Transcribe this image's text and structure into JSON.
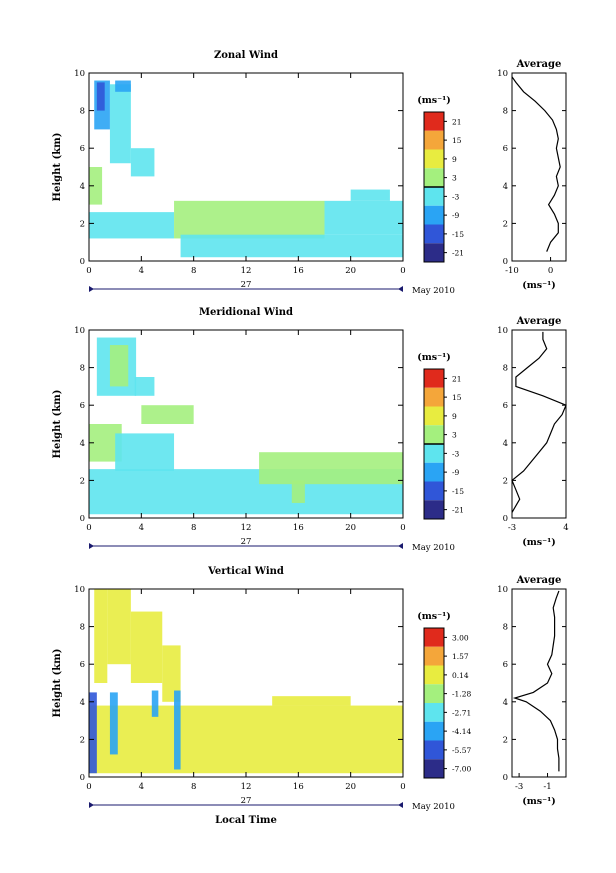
{
  "chart_data": [
    {
      "type": "heatmap",
      "title": "Zonal Wind",
      "ylabel": "Height (km)",
      "xlim": [
        0,
        24
      ],
      "ylim": [
        0,
        10
      ],
      "xticks": [
        "0",
        "4",
        "8",
        "12",
        "16",
        "20",
        "0"
      ],
      "yticks": [
        "0",
        "2",
        "4",
        "6",
        "8",
        "10"
      ],
      "date_day": "27",
      "date_label": "May 2010",
      "colorbar": {
        "unit": "(ms⁻¹)",
        "ticks": [
          "21",
          "15",
          "9",
          "3",
          "-3",
          "-9",
          "-15",
          "-21"
        ],
        "range": [
          -24,
          24
        ],
        "contour": 0,
        "colors": [
          "#2c2c88",
          "#3056d8",
          "#2aa4f4",
          "#5ee4ee",
          "#a4f07e",
          "#e8ec40",
          "#f4a63a",
          "#e02a1c"
        ]
      },
      "regions": [
        {
          "x": [
            0.4,
            1.6
          ],
          "y": [
            7.0,
            9.6
          ],
          "v": -8
        },
        {
          "x": [
            0.6,
            1.2
          ],
          "y": [
            8.0,
            9.5
          ],
          "v": -16
        },
        {
          "x": [
            1.6,
            3.2
          ],
          "y": [
            5.2,
            9.4
          ],
          "v": -4
        },
        {
          "x": [
            2.0,
            3.2
          ],
          "y": [
            9.0,
            9.6
          ],
          "v": -12
        },
        {
          "x": [
            3.2,
            5.0
          ],
          "y": [
            4.5,
            6.0
          ],
          "v": -3
        },
        {
          "x": [
            0.0,
            1.0
          ],
          "y": [
            3.0,
            5.0
          ],
          "v": 4
        },
        {
          "x": [
            0.0,
            6.5
          ],
          "y": [
            1.2,
            2.6
          ],
          "v": -2
        },
        {
          "x": [
            6.5,
            18.0
          ],
          "y": [
            1.2,
            3.2
          ],
          "v": 2
        },
        {
          "x": [
            7.0,
            24.0
          ],
          "y": [
            0.2,
            1.4
          ],
          "v": -6
        },
        {
          "x": [
            18.0,
            24.0
          ],
          "y": [
            1.4,
            3.2
          ],
          "v": -1
        },
        {
          "x": [
            20.0,
            23.0
          ],
          "y": [
            3.2,
            3.8
          ],
          "v": -4
        }
      ],
      "profile": {
        "title": "Average",
        "xlabel": "(ms⁻¹)",
        "xlim": [
          -10,
          4
        ],
        "xticks": [
          "-10",
          "0"
        ],
        "xtickvals": [
          -10,
          0
        ],
        "y": [
          0.5,
          1,
          1.5,
          2,
          2.5,
          3,
          3.5,
          4,
          4.5,
          5,
          5.5,
          6,
          6.5,
          7,
          7.5,
          8,
          8.5,
          9,
          9.5,
          9.8
        ],
        "v": [
          -1,
          0,
          2,
          2,
          1,
          -0.5,
          1,
          2,
          1.5,
          2.5,
          2,
          1.5,
          2,
          1.5,
          0.5,
          -1.5,
          -4,
          -7,
          -9,
          -10
        ]
      }
    },
    {
      "type": "heatmap",
      "title": "Meridional Wind",
      "ylabel": "Height (km)",
      "xlim": [
        0,
        24
      ],
      "ylim": [
        0,
        10
      ],
      "xticks": [
        "0",
        "4",
        "8",
        "12",
        "16",
        "20",
        "0"
      ],
      "yticks": [
        "0",
        "2",
        "4",
        "6",
        "8",
        "10"
      ],
      "date_day": "27",
      "date_label": "May 2010",
      "colorbar": {
        "unit": "(ms⁻¹)",
        "ticks": [
          "21",
          "15",
          "9",
          "3",
          "-3",
          "-9",
          "-15",
          "-21"
        ],
        "range": [
          -24,
          24
        ],
        "contour": 0,
        "colors": [
          "#2c2c88",
          "#3056d8",
          "#2aa4f4",
          "#5ee4ee",
          "#a4f07e",
          "#e8ec40",
          "#f4a63a",
          "#e02a1c"
        ]
      },
      "regions": [
        {
          "x": [
            0.6,
            3.6
          ],
          "y": [
            6.5,
            9.6
          ],
          "v": -3
        },
        {
          "x": [
            1.6,
            3.0
          ],
          "y": [
            7.0,
            9.2
          ],
          "v": 2
        },
        {
          "x": [
            3.5,
            5.0
          ],
          "y": [
            6.5,
            7.5
          ],
          "v": -2
        },
        {
          "x": [
            4.0,
            8.0
          ],
          "y": [
            5.0,
            6.0
          ],
          "v": 4
        },
        {
          "x": [
            0.0,
            2.5
          ],
          "y": [
            3.0,
            5.0
          ],
          "v": 2
        },
        {
          "x": [
            2.0,
            6.5
          ],
          "y": [
            2.5,
            4.5
          ],
          "v": -2
        },
        {
          "x": [
            0.0,
            24.0
          ],
          "y": [
            0.2,
            2.6
          ],
          "v": -6
        },
        {
          "x": [
            13.0,
            24.0
          ],
          "y": [
            1.8,
            3.5
          ],
          "v": 2
        },
        {
          "x": [
            15.5,
            16.5
          ],
          "y": [
            0.8,
            2.0
          ],
          "v": 1
        }
      ],
      "profile": {
        "title": "Average",
        "xlabel": "(ms⁻¹)",
        "xlim": [
          -3,
          4
        ],
        "xticks": [
          "-3",
          "4"
        ],
        "xtickvals": [
          -3,
          4
        ],
        "y": [
          0.3,
          1,
          1.5,
          2,
          2.5,
          3,
          3.5,
          4,
          4.5,
          5,
          5.5,
          6,
          6.5,
          7,
          7.5,
          8,
          8.5,
          9,
          9.5,
          9.9
        ],
        "v": [
          -3,
          -2,
          -2.5,
          -3,
          -1.5,
          -0.5,
          0.5,
          1.5,
          2,
          2.5,
          3.5,
          4,
          1,
          -2.5,
          -2.5,
          -1,
          0.5,
          1.5,
          1,
          1
        ]
      }
    },
    {
      "type": "heatmap",
      "title": "Vertical Wind",
      "ylabel": "Height (km)",
      "xlabel": "Local Time",
      "xlim": [
        0,
        24
      ],
      "ylim": [
        0,
        10
      ],
      "xticks": [
        "0",
        "4",
        "8",
        "12",
        "16",
        "20",
        "0"
      ],
      "yticks": [
        "0",
        "2",
        "4",
        "6",
        "8",
        "10"
      ],
      "date_day": "27",
      "date_label": "May 2010",
      "colorbar": {
        "unit": "(ms⁻¹)",
        "ticks": [
          "3.00",
          "1.57",
          "0.14",
          "-1.28",
          "-2.71",
          "-4.14",
          "-5.57",
          "-7.00"
        ],
        "range": [
          -7.5,
          3.5
        ],
        "colors": [
          "#2c2c88",
          "#3056d8",
          "#2aa4f4",
          "#5ee4ee",
          "#a4f07e",
          "#e8ec40",
          "#f4a63a",
          "#e02a1c"
        ]
      },
      "regions": [
        {
          "x": [
            0.0,
            24.0
          ],
          "y": [
            0.2,
            3.8
          ],
          "v": 0.3
        },
        {
          "x": [
            14.0,
            20.0
          ],
          "y": [
            3.8,
            4.3
          ],
          "v": 0.3
        },
        {
          "x": [
            0.4,
            1.4
          ],
          "y": [
            5.0,
            10.0
          ],
          "v": -0.6
        },
        {
          "x": [
            1.4,
            3.2
          ],
          "y": [
            6.0,
            10.0
          ],
          "v": -0.6
        },
        {
          "x": [
            3.2,
            5.6
          ],
          "y": [
            5.0,
            8.8
          ],
          "v": -0.6
        },
        {
          "x": [
            5.6,
            7.0
          ],
          "y": [
            4.0,
            7.0
          ],
          "v": -0.3
        },
        {
          "x": [
            0.0,
            0.6
          ],
          "y": [
            0.2,
            4.5
          ],
          "v": -6
        },
        {
          "x": [
            1.6,
            2.2
          ],
          "y": [
            1.2,
            4.5
          ],
          "v": -3.5
        },
        {
          "x": [
            4.8,
            5.3
          ],
          "y": [
            3.2,
            4.6
          ],
          "v": -3.5
        },
        {
          "x": [
            6.5,
            7.0
          ],
          "y": [
            0.4,
            4.6
          ],
          "v": -4
        }
      ],
      "profile": {
        "title": "Average",
        "xlabel": "(ms⁻¹)",
        "xlim": [
          -3.5,
          0.3
        ],
        "xticks": [
          "-3",
          "-1"
        ],
        "xtickvals": [
          -3,
          -1
        ],
        "y": [
          0.3,
          1,
          1.5,
          2,
          2.5,
          3,
          3.5,
          4,
          4.2,
          4.5,
          5,
          5.5,
          6,
          6.5,
          7,
          7.5,
          8,
          8.5,
          9,
          9.5,
          9.9
        ],
        "v": [
          -0.2,
          -0.2,
          -0.3,
          -0.3,
          -0.5,
          -0.8,
          -1.5,
          -2.5,
          -3.3,
          -2,
          -1,
          -0.7,
          -1,
          -0.7,
          -0.6,
          -0.5,
          -0.5,
          -0.5,
          -0.6,
          -0.4,
          -0.2
        ]
      }
    }
  ]
}
